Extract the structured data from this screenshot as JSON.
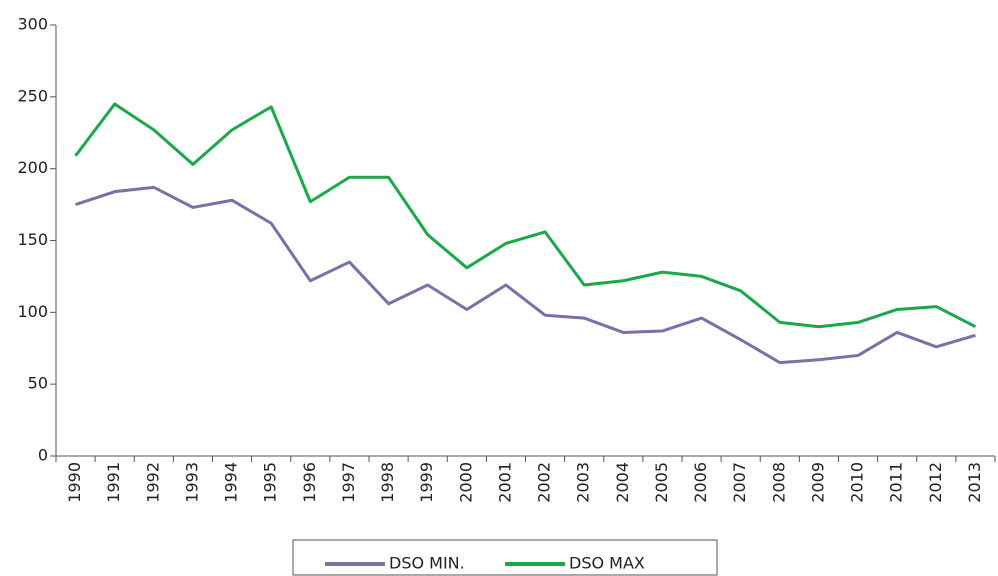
{
  "chart_data": {
    "type": "line",
    "categories": [
      "1990",
      "1991",
      "1992",
      "1993",
      "1994",
      "1995",
      "1996",
      "1997",
      "1998",
      "1999",
      "2000",
      "2001",
      "2002",
      "2003",
      "2004",
      "2005",
      "2006",
      "2007",
      "2008",
      "2009",
      "2010",
      "2011",
      "2012",
      "2013"
    ],
    "series": [
      {
        "name": "DSO MIN.",
        "color": "#7b6fa8",
        "values": [
          175,
          184,
          187,
          173,
          178,
          162,
          122,
          135,
          106,
          119,
          102,
          119,
          98,
          96,
          86,
          87,
          96,
          81,
          65,
          67,
          70,
          86,
          76,
          84
        ]
      },
      {
        "name": "DSO MAX",
        "color": "#1aa84b",
        "values": [
          209,
          245,
          227,
          203,
          227,
          243,
          177,
          194,
          194,
          154,
          131,
          148,
          156,
          119,
          122,
          128,
          125,
          115,
          93,
          90,
          93,
          102,
          104,
          90
        ]
      }
    ],
    "ylim": [
      0,
      300
    ],
    "yticks": [
      0,
      50,
      100,
      150,
      200,
      250,
      300
    ],
    "grid": false,
    "legend": "bottom"
  }
}
